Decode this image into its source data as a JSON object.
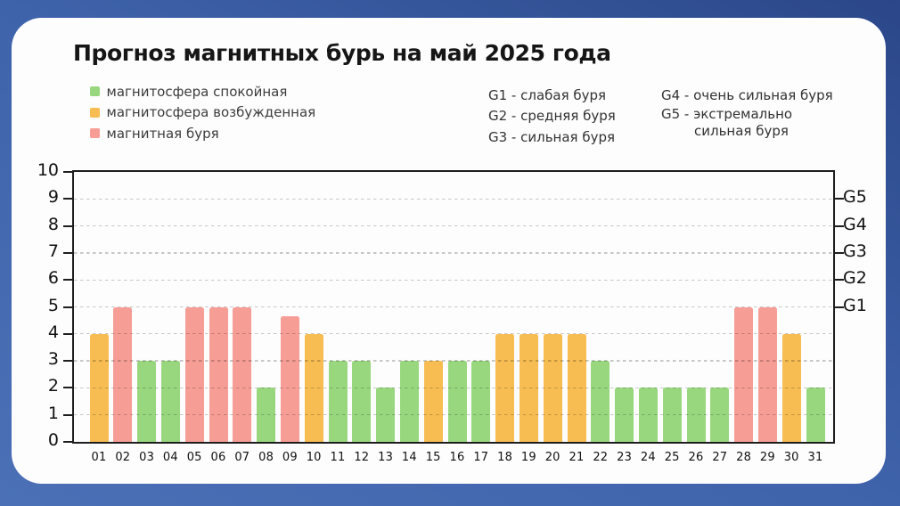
{
  "title": "Прогноз магнитных бурь на май 2025 года",
  "legend": {
    "items": [
      {
        "key": "calm",
        "label": "магнитосфера спокойная",
        "color": "#98d77e"
      },
      {
        "key": "excited",
        "label": "магнитосфера возбужденная",
        "color": "#f7bd52"
      },
      {
        "key": "storm",
        "label": "магнитная буря",
        "color": "#f69d96"
      }
    ]
  },
  "g_legend": {
    "col1": [
      "G1 - слабая буря",
      "G2 - средняя буря",
      "G3 - сильная буря"
    ],
    "col2_line1": "G4 - очень сильная буря",
    "col2_line2": "G5 - экстремально",
    "col2_line3": "сильная буря"
  },
  "chart_data": {
    "type": "bar",
    "title": "Прогноз магнитных бурь на май 2025 года",
    "categories": [
      "01",
      "02",
      "03",
      "04",
      "05",
      "06",
      "07",
      "08",
      "09",
      "10",
      "11",
      "12",
      "13",
      "14",
      "15",
      "16",
      "17",
      "18",
      "19",
      "20",
      "21",
      "22",
      "23",
      "24",
      "25",
      "26",
      "27",
      "28",
      "29",
      "30",
      "31"
    ],
    "values": [
      4,
      5,
      3,
      3,
      5,
      5,
      5,
      2,
      4.67,
      4,
      3,
      3,
      2,
      3,
      3,
      3,
      3,
      4,
      4,
      4,
      4,
      3,
      2,
      2,
      2,
      2,
      2,
      5,
      5,
      4,
      2
    ],
    "levels": [
      "excited",
      "storm",
      "calm",
      "calm",
      "storm",
      "storm",
      "storm",
      "calm",
      "storm",
      "excited",
      "calm",
      "calm",
      "calm",
      "calm",
      "excited",
      "calm",
      "calm",
      "excited",
      "excited",
      "excited",
      "excited",
      "calm",
      "calm",
      "calm",
      "calm",
      "calm",
      "calm",
      "storm",
      "storm",
      "excited",
      "calm"
    ],
    "level_colors": {
      "calm": "#98d77e",
      "excited": "#f7bd52",
      "storm": "#f69d96"
    },
    "ylim": [
      0,
      10
    ],
    "yticks": [
      0,
      1,
      2,
      3,
      4,
      5,
      6,
      7,
      8,
      9,
      10
    ],
    "gridlines": [
      1,
      2,
      3,
      4,
      5,
      6,
      7,
      8,
      9
    ],
    "grid_style": "dashed",
    "right_axis": [
      {
        "value": 5,
        "label": "G1"
      },
      {
        "value": 6,
        "label": "G2"
      },
      {
        "value": 7,
        "label": "G3"
      },
      {
        "value": 8,
        "label": "G4"
      },
      {
        "value": 9,
        "label": "G5"
      }
    ],
    "xlabel": "",
    "ylabel": ""
  }
}
